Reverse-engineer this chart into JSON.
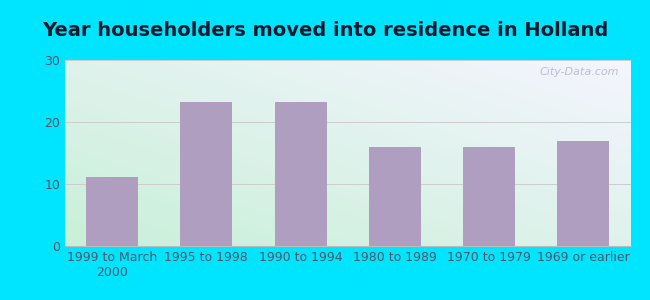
{
  "title": "Year householders moved into residence in Holland",
  "categories": [
    "1999 to March\n2000",
    "1995 to 1998",
    "1990 to 1994",
    "1980 to 1989",
    "1970 to 1979",
    "1969 or earlier"
  ],
  "values": [
    11.1,
    23.3,
    23.2,
    16.0,
    16.0,
    17.0
  ],
  "bar_color": "#b09ec0",
  "ylim": [
    0,
    30
  ],
  "yticks": [
    0,
    10,
    20,
    30
  ],
  "background_outer": "#00e5ff",
  "background_grad_bottom_left": "#c8f0d8",
  "background_grad_top_right": "#f0f0ff",
  "grid_color": "#cccccc",
  "title_fontsize": 14,
  "tick_fontsize": 9,
  "watermark": "City-Data.com",
  "title_color": "#1a1a2e",
  "tick_color": "#555566"
}
